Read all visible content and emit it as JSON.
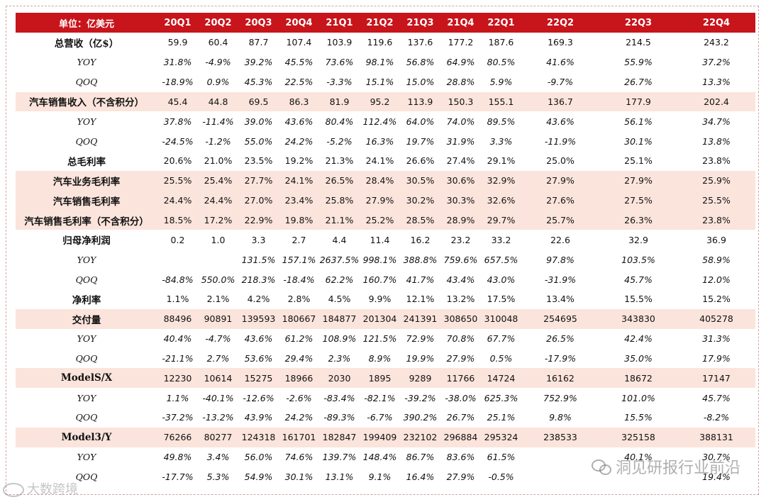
{
  "header": [
    "单位：亿美元",
    "20Q1",
    "20Q2",
    "20Q3",
    "20Q4",
    "21Q1",
    "21Q2",
    "21Q3",
    "21Q4",
    "22Q1",
    "22Q2",
    "22Q3",
    "22Q4"
  ],
  "rows": [
    {
      "label": "总营收（亿$）",
      "sub": false,
      "hl": false,
      "pct": false,
      "values": [
        "59.9",
        "60.4",
        "87.7",
        "107.4",
        "103.9",
        "119.6",
        "137.6",
        "177.2",
        "187.6",
        "169.3",
        "214.5",
        "243.2"
      ]
    },
    {
      "label": "YOY",
      "sub": true,
      "hl": false,
      "pct": true,
      "values": [
        "31.8%",
        "-4.9%",
        "39.2%",
        "45.5%",
        "73.6%",
        "98.1%",
        "56.8%",
        "64.9%",
        "80.5%",
        "41.6%",
        "55.9%",
        "37.2%"
      ]
    },
    {
      "label": "QOQ",
      "sub": true,
      "hl": false,
      "pct": true,
      "values": [
        "-18.9%",
        "0.9%",
        "45.3%",
        "22.5%",
        "-3.3%",
        "15.1%",
        "15.0%",
        "28.8%",
        "5.9%",
        "-9.7%",
        "26.7%",
        "13.3%"
      ]
    },
    {
      "label": "汽车销售收入（不含积分）",
      "sub": false,
      "hl": true,
      "pct": false,
      "values": [
        "45.4",
        "44.8",
        "69.5",
        "86.3",
        "81.9",
        "95.2",
        "113.9",
        "150.3",
        "155.1",
        "136.7",
        "177.9",
        "202.4"
      ]
    },
    {
      "label": "YOY",
      "sub": true,
      "hl": false,
      "pct": true,
      "values": [
        "37.8%",
        "-11.4%",
        "39.0%",
        "43.6%",
        "80.4%",
        "112.4%",
        "64.0%",
        "74.0%",
        "89.5%",
        "43.6%",
        "56.1%",
        "34.7%"
      ]
    },
    {
      "label": "QOQ",
      "sub": true,
      "hl": false,
      "pct": true,
      "values": [
        "-24.5%",
        "-1.2%",
        "55.0%",
        "24.2%",
        "-5.2%",
        "16.3%",
        "19.7%",
        "31.9%",
        "3.3%",
        "-11.9%",
        "30.1%",
        "13.8%"
      ]
    },
    {
      "label": "总毛利率",
      "sub": false,
      "hl": false,
      "pct": false,
      "values": [
        "20.6%",
        "21.0%",
        "23.5%",
        "19.2%",
        "21.3%",
        "24.1%",
        "26.6%",
        "27.4%",
        "29.1%",
        "25.0%",
        "25.1%",
        "23.8%"
      ]
    },
    {
      "label": "汽车业务毛利率",
      "sub": false,
      "hl": true,
      "pct": false,
      "values": [
        "25.5%",
        "25.4%",
        "27.7%",
        "24.1%",
        "26.5%",
        "28.4%",
        "30.5%",
        "30.6%",
        "32.9%",
        "27.9%",
        "27.9%",
        "25.9%"
      ]
    },
    {
      "label": "汽车销售毛利率",
      "sub": false,
      "hl": true,
      "pct": false,
      "values": [
        "24.4%",
        "24.4%",
        "27.0%",
        "23.4%",
        "25.8%",
        "27.9%",
        "30.2%",
        "30.3%",
        "32.6%",
        "27.6%",
        "27.5%",
        "25.5%"
      ]
    },
    {
      "label": "汽车销售毛利率（不含积分）",
      "sub": false,
      "hl": true,
      "pct": false,
      "values": [
        "18.5%",
        "17.2%",
        "22.9%",
        "19.8%",
        "21.1%",
        "25.2%",
        "28.5%",
        "28.9%",
        "29.7%",
        "25.7%",
        "26.3%",
        "23.8%"
      ]
    },
    {
      "label": "归母净利润",
      "sub": false,
      "hl": false,
      "pct": false,
      "values": [
        "0.2",
        "1.0",
        "3.3",
        "2.7",
        "4.4",
        "11.4",
        "16.2",
        "23.2",
        "33.2",
        "22.6",
        "32.9",
        "36.9"
      ]
    },
    {
      "label": "YOY",
      "sub": true,
      "hl": false,
      "pct": true,
      "values": [
        "",
        "",
        "131.5%",
        "157.1%",
        "2637.5%",
        "998.1%",
        "388.8%",
        "759.6%",
        "657.5%",
        "97.8%",
        "103.5%",
        "58.9%"
      ]
    },
    {
      "label": "QOQ",
      "sub": true,
      "hl": false,
      "pct": true,
      "values": [
        "-84.8%",
        "550.0%",
        "218.3%",
        "-18.4%",
        "62.2%",
        "160.7%",
        "41.7%",
        "43.4%",
        "43.0%",
        "-31.9%",
        "45.7%",
        "12.0%"
      ]
    },
    {
      "label": "净利率",
      "sub": false,
      "hl": false,
      "pct": false,
      "values": [
        "1.1%",
        "2.1%",
        "4.2%",
        "2.8%",
        "4.5%",
        "9.9%",
        "12.1%",
        "13.2%",
        "17.5%",
        "13.4%",
        "15.5%",
        "15.2%"
      ]
    },
    {
      "label": "交付量",
      "sub": false,
      "hl": true,
      "pct": false,
      "values": [
        "88496",
        "90891",
        "139593",
        "180667",
        "184877",
        "201304",
        "241391",
        "308650",
        "310048",
        "254695",
        "343830",
        "405278"
      ]
    },
    {
      "label": "YOY",
      "sub": true,
      "hl": false,
      "pct": true,
      "values": [
        "40.4%",
        "-4.7%",
        "43.6%",
        "61.2%",
        "108.9%",
        "121.5%",
        "72.9%",
        "70.8%",
        "67.7%",
        "26.5%",
        "42.4%",
        "31.3%"
      ]
    },
    {
      "label": "QOQ",
      "sub": true,
      "hl": false,
      "pct": true,
      "values": [
        "-21.1%",
        "2.7%",
        "53.6%",
        "29.4%",
        "2.3%",
        "8.9%",
        "19.9%",
        "27.9%",
        "0.5%",
        "-17.9%",
        "35.0%",
        "17.9%"
      ]
    },
    {
      "label": "ModelS/X",
      "sub": false,
      "hl": true,
      "pct": false,
      "values": [
        "12230",
        "10614",
        "15275",
        "18966",
        "2030",
        "1895",
        "9289",
        "11766",
        "14724",
        "16162",
        "18672",
        "17147"
      ]
    },
    {
      "label": "YOY",
      "sub": true,
      "hl": false,
      "pct": true,
      "values": [
        "1.1%",
        "-40.1%",
        "-12.6%",
        "-2.6%",
        "-83.4%",
        "-82.1%",
        "-39.2%",
        "-38.0%",
        "625.3%",
        "752.9%",
        "101.0%",
        "45.7%"
      ]
    },
    {
      "label": "QOQ",
      "sub": true,
      "hl": false,
      "pct": true,
      "values": [
        "-37.2%",
        "-13.2%",
        "43.9%",
        "24.2%",
        "-89.3%",
        "-6.7%",
        "390.2%",
        "26.7%",
        "25.1%",
        "9.8%",
        "15.5%",
        "-8.2%"
      ]
    },
    {
      "label": "Model3/Y",
      "sub": false,
      "hl": true,
      "pct": false,
      "values": [
        "76266",
        "80277",
        "124318",
        "161701",
        "182847",
        "199409",
        "232102",
        "296884",
        "295324",
        "238533",
        "325158",
        "388131"
      ]
    },
    {
      "label": "YOY",
      "sub": true,
      "hl": false,
      "pct": true,
      "values": [
        "49.8%",
        "3.4%",
        "56.0%",
        "74.6%",
        "139.7%",
        "148.4%",
        "86.7%",
        "83.6%",
        "61.5%",
        "",
        "40.1%",
        "30.7%"
      ]
    },
    {
      "label": "QOQ",
      "sub": true,
      "hl": false,
      "pct": true,
      "values": [
        "-17.7%",
        "5.3%",
        "54.9%",
        "30.1%",
        "13.1%",
        "9.1%",
        "16.4%",
        "27.9%",
        "-0.5%",
        "",
        "",
        "19.4%"
      ]
    }
  ],
  "watermark_left": "大数跨境",
  "watermark_right": "洞见研报行业前沿",
  "watermark_left_icon": "circle-logo-icon",
  "watermark_right_icon": "wechat-icon"
}
